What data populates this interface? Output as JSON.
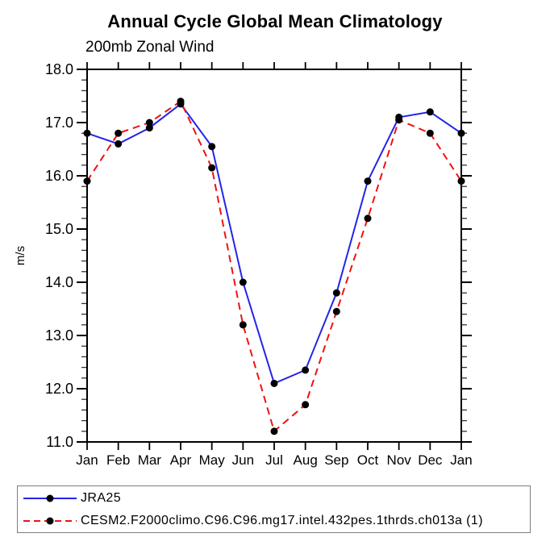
{
  "title": "Annual Cycle Global Mean Climatology",
  "subtitle": "200mb Zonal Wind",
  "chart_data": {
    "type": "line",
    "x_categories": [
      "Jan",
      "Feb",
      "Mar",
      "Apr",
      "May",
      "Jun",
      "Jul",
      "Aug",
      "Sep",
      "Oct",
      "Nov",
      "Dec",
      "Jan"
    ],
    "ylabel": "m/s",
    "ylim": [
      11.0,
      18.0
    ],
    "y_major_step": 1.0,
    "y_minor_step": 0.2,
    "y_tick_labels": [
      "11.0",
      "12.0",
      "13.0",
      "14.0",
      "15.0",
      "16.0",
      "17.0",
      "18.0"
    ],
    "grid": false,
    "legend_position": "bottom-left-box",
    "axis_color": "#000000",
    "marker_color": "#000000",
    "series": [
      {
        "name": "JRA25",
        "color": "#2424e8",
        "line_style": "solid",
        "marker": "filled-circle",
        "values": [
          16.8,
          16.6,
          16.9,
          17.35,
          16.55,
          14.0,
          12.1,
          12.35,
          13.8,
          15.9,
          17.1,
          17.2,
          16.8
        ]
      },
      {
        "name": "CESM2.F2000climo.C96.C96.mg17.intel.432pes.1thrds.ch013a (1)",
        "color": "#f01111",
        "line_style": "dashed",
        "marker": "filled-circle",
        "values": [
          15.9,
          16.8,
          17.0,
          17.4,
          16.15,
          13.2,
          11.2,
          11.7,
          13.45,
          15.2,
          17.05,
          16.8,
          15.9
        ]
      }
    ]
  }
}
